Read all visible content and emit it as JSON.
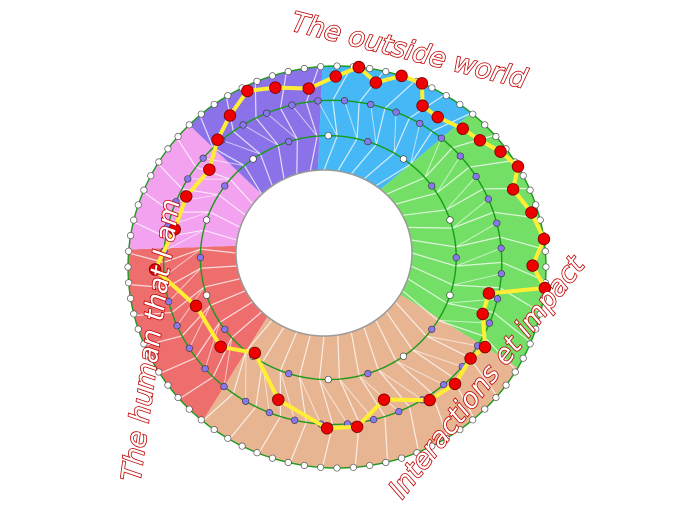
{
  "labels": {
    "top": "The outside world",
    "left": "The human that I am",
    "bottom_right": "Interactions et impact"
  },
  "colors": {
    "blue": "#45b8f5",
    "green": "#74df66",
    "peach": "#e8b592",
    "red": "#ee6e6e",
    "pink": "#f2a2ef",
    "purple": "#8b72e8",
    "ring_line": "#1a9a1a",
    "path": "#ffee33",
    "node_red": "#ee0000",
    "node_purple": "#8877ee",
    "text_outline": "#c00000"
  }
}
